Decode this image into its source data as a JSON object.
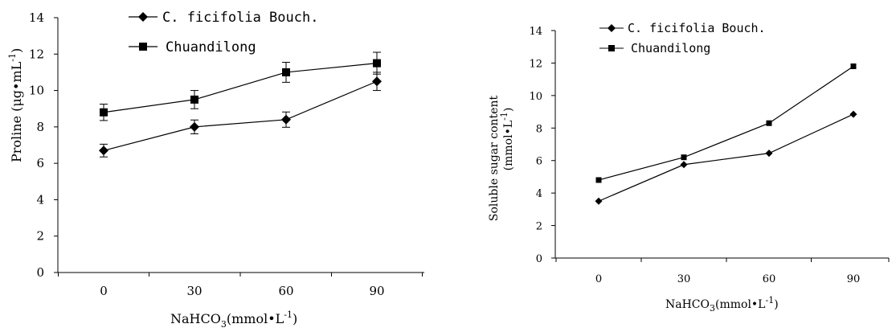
{
  "chart_data": [
    {
      "type": "line",
      "title": "",
      "categories": [
        "0",
        "30",
        "60",
        "90"
      ],
      "x": [
        0,
        30,
        60,
        90
      ],
      "ylim": [
        0,
        14
      ],
      "yticks": [
        "0",
        "2",
        "4",
        "6",
        "8",
        "10",
        "12",
        "14"
      ],
      "xlabel": {
        "main": "NaHCO",
        "sub": "3",
        "unit": "(mmol•L",
        "exp": "-1",
        "close": ")"
      },
      "ylabel": {
        "main": "Proline (μg•mL",
        "exp": "-1",
        "close": ")"
      },
      "legend_position": "top-left",
      "error_bars": true,
      "series": [
        {
          "name": "C. ficifolia Bouch.",
          "marker": "diamond",
          "values": [
            6.7,
            8.0,
            8.4,
            10.5
          ],
          "errors": [
            0.35,
            0.38,
            0.42,
            0.5
          ]
        },
        {
          "name": "Chuandilong",
          "marker": "square",
          "values": [
            8.8,
            9.5,
            11.0,
            11.5
          ],
          "errors": [
            0.45,
            0.5,
            0.55,
            0.6
          ]
        }
      ]
    },
    {
      "type": "line",
      "title": "",
      "categories": [
        "0",
        "30",
        "60",
        "90"
      ],
      "x": [
        0,
        30,
        60,
        90
      ],
      "ylim": [
        0,
        14
      ],
      "yticks": [
        "0",
        "2",
        "4",
        "6",
        "8",
        "10",
        "12",
        "14"
      ],
      "xlabel": {
        "main": "NaHCO",
        "sub": "3",
        "unit": "(mmol•L",
        "exp": "-1",
        "close": ")"
      },
      "ylabel": {
        "line1": "Soluble sugar content",
        "line2_main": "(mmol•L",
        "line2_exp": "-1",
        "line2_close": ")"
      },
      "legend_position": "top-left",
      "error_bars": false,
      "series": [
        {
          "name": "C. ficifolia Bouch.",
          "marker": "diamond",
          "values": [
            3.5,
            5.75,
            6.45,
            8.85
          ]
        },
        {
          "name": "Chuandilong",
          "marker": "square",
          "values": [
            4.8,
            6.2,
            8.3,
            11.8
          ]
        }
      ]
    }
  ]
}
